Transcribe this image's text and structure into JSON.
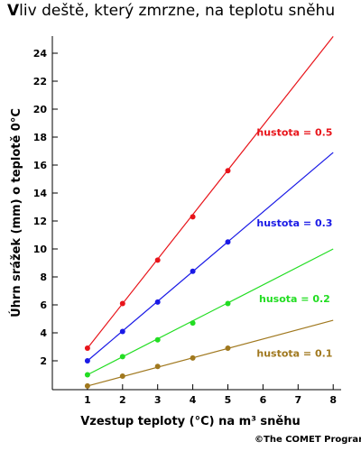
{
  "title": "Vliv deště, který zmrzne, na teplotu sněhu",
  "credit": "©The COMET Program",
  "chart_data": {
    "type": "line",
    "title": "Vliv deště, který zmrzne, na teplotu sněhu",
    "xlabel": "Vzestup teploty (°C) na m³ sněhu",
    "ylabel": "Úhrn srážek (mm) o teplotě 0°C",
    "xlim": [
      0,
      8
    ],
    "ylim": [
      0,
      25
    ],
    "x_ticks": [
      1,
      2,
      3,
      4,
      5,
      6,
      7,
      8
    ],
    "y_ticks": [
      2,
      4,
      6,
      8,
      10,
      12,
      14,
      16,
      18,
      20,
      22,
      24
    ],
    "grid": false,
    "series": [
      {
        "name": "hustota = 0.5",
        "color": "#e8141a",
        "points": [
          [
            1,
            2.9
          ],
          [
            2,
            6.1
          ],
          [
            3,
            9.2
          ],
          [
            4,
            12.3
          ],
          [
            5,
            15.6
          ]
        ],
        "line": [
          [
            1,
            2.9
          ],
          [
            8,
            25.2
          ]
        ],
        "label_at": [
          6.9,
          18.1
        ]
      },
      {
        "name": "hustota = 0.3",
        "color": "#1a1ae6",
        "points": [
          [
            1,
            2.0
          ],
          [
            2,
            4.1
          ],
          [
            3,
            6.2
          ],
          [
            4,
            8.4
          ],
          [
            5,
            10.5
          ]
        ],
        "line": [
          [
            1,
            2.0
          ],
          [
            8,
            16.9
          ]
        ],
        "label_at": [
          6.9,
          11.6
        ]
      },
      {
        "name": "husota = 0.2",
        "color": "#22dd22",
        "points": [
          [
            1,
            1.0
          ],
          [
            2,
            2.3
          ],
          [
            3,
            3.5
          ],
          [
            4,
            4.7
          ],
          [
            5,
            6.1
          ]
        ],
        "line": [
          [
            1,
            1.0
          ],
          [
            8,
            10.0
          ]
        ],
        "label_at": [
          6.9,
          6.2
        ]
      },
      {
        "name": "hustota = 0.1",
        "color": "#a0781e",
        "points": [
          [
            1,
            0.2
          ],
          [
            2,
            0.9
          ],
          [
            3,
            1.6
          ],
          [
            4,
            2.2
          ],
          [
            5,
            2.9
          ]
        ],
        "line": [
          [
            1,
            0.2
          ],
          [
            8,
            4.9
          ]
        ],
        "label_at": [
          6.9,
          2.3
        ]
      }
    ]
  }
}
